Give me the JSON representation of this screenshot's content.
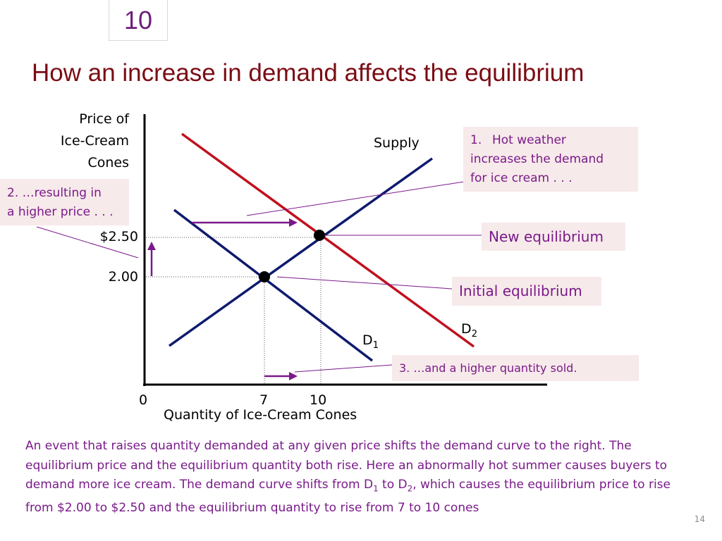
{
  "slide": {
    "badge": "10",
    "title": "How an increase in demand  affects the equilibrium",
    "page_number": "14"
  },
  "axes": {
    "y_label_lines": [
      "Price of",
      "Ice-Cream",
      "Cones"
    ],
    "x_label": "Quantity of Ice-Cream Cones",
    "y_ticks": [
      "$2.50",
      "2.00"
    ],
    "x_ticks": [
      "0",
      "7",
      "10"
    ]
  },
  "curves": {
    "supply_label": "Supply",
    "d1_label": {
      "base": "D",
      "sub": "1"
    },
    "d2_label": {
      "base": "D",
      "sub": "2"
    }
  },
  "callouts": {
    "hot_weather": {
      "number": "1.",
      "lines": [
        "Hot weather",
        "increases the demand",
        "for ice cream . . ."
      ]
    },
    "higher_price": {
      "lines": [
        "2. …resulting in",
        "a higher price . . ."
      ]
    },
    "new_equilibrium": "New equilibrium",
    "initial_equilibrium": "Initial equilibrium",
    "higher_quantity": "3. …and a higher quantity sold."
  },
  "caption": {
    "part1": "An event that raises quantity demanded at any given price shifts the demand curve to the right. The equilibrium price and the equilibrium quantity both rise. Here an abnormally hot summer causes buyers to demand more ice cream. The demand curve shifts from D",
    "sub1": "1",
    "part2": " to D",
    "sub2": "2",
    "part3": ", which causes the equilibrium price to rise from $2.00 to $2.50 and the equilibrium quantity to rise from 7 to 10 cones"
  },
  "colors": {
    "title": "#7b0c14",
    "supply": "#0d1a6e",
    "demand_initial": "#0d1a6e",
    "demand_new": "#c0101e",
    "callout_text": "#7a1a8a",
    "callout_bg": "#f7eaea",
    "arrows": "#7a1a8a"
  }
}
